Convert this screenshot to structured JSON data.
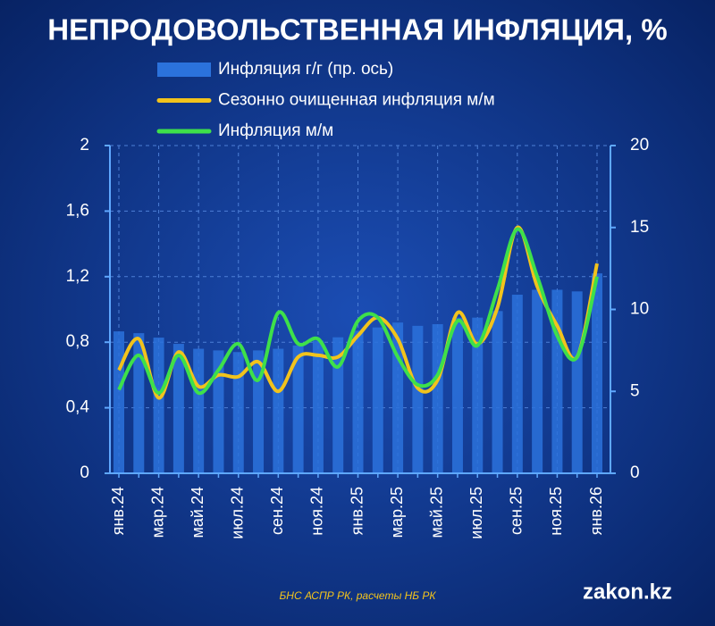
{
  "chart_data": {
    "type": "bar-line",
    "title": "НЕПРОДОВОЛЬСТВЕННАЯ ИНФЛЯЦИЯ, %",
    "source": "БНС АСПР РК, расчеты НБ РК",
    "watermark": "zakon.kz",
    "categories": [
      "янв.24",
      null,
      "мар.24",
      null,
      "май.24",
      null,
      "июл.24",
      null,
      "сен.24",
      null,
      "ноя.24",
      null,
      "янв.25",
      null,
      "мар.25",
      null,
      "май.25",
      null,
      "июл.25",
      null,
      "сен.25",
      null,
      "ноя.25",
      null,
      "янв.26"
    ],
    "series": [
      {
        "name": "Инфляция г/г (пр. ось)",
        "kind": "bar",
        "axis": "y2",
        "color": "#2b72dc",
        "values": [
          8.66,
          8.55,
          8.28,
          7.9,
          7.6,
          7.5,
          7.4,
          7.5,
          7.6,
          7.8,
          8.1,
          8.3,
          8.7,
          8.9,
          9.2,
          9.0,
          9.1,
          9.5,
          9.5,
          9.9,
          10.9,
          11.2,
          11.2,
          11.1,
          12.2
        ]
      },
      {
        "name": "Сезонно очищенная инфляция м/м",
        "kind": "line",
        "color": "#f2c31c",
        "values": [
          0.63,
          0.82,
          0.46,
          0.74,
          0.53,
          0.6,
          0.59,
          0.68,
          0.5,
          0.71,
          0.72,
          0.71,
          0.84,
          0.95,
          0.82,
          0.52,
          0.57,
          0.98,
          0.79,
          1.01,
          1.5,
          1.14,
          0.9,
          0.71,
          1.28
        ]
      },
      {
        "name": "Инфляция м/м",
        "kind": "line",
        "color": "#3ee04a",
        "values": [
          0.51,
          0.72,
          0.49,
          0.72,
          0.49,
          0.63,
          0.79,
          0.57,
          0.98,
          0.79,
          0.82,
          0.65,
          0.93,
          0.95,
          0.71,
          0.54,
          0.6,
          0.93,
          0.78,
          1.12,
          1.49,
          1.2,
          0.84,
          0.71,
          1.2
        ]
      }
    ],
    "ylim": [
      0,
      2
    ],
    "yticks": [
      0,
      {
        "value": 0.4,
        "label": "0,4"
      },
      {
        "value": 0.8,
        "label": "0,8"
      },
      {
        "value": 1.2,
        "label": "1,2"
      },
      {
        "value": 1.6,
        "label": "1,6"
      },
      2
    ],
    "y2lim": [
      0,
      20
    ],
    "y2ticks": [
      0,
      5,
      10,
      15,
      20
    ],
    "grid": true
  }
}
